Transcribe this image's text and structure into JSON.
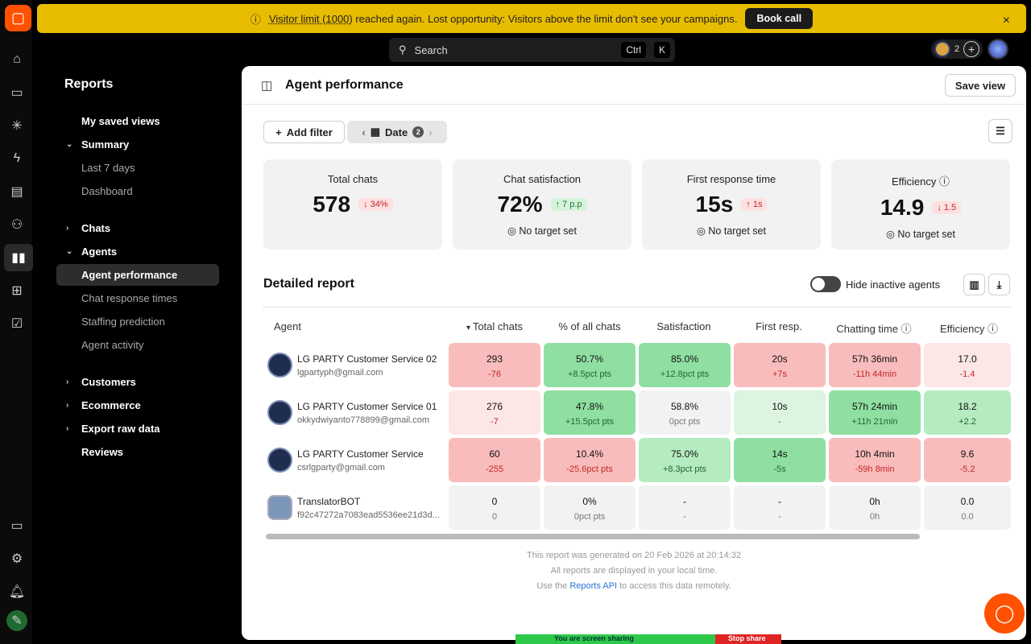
{
  "banner": {
    "text_link": "Visitor limit (1000)",
    "text": " reached again. Lost opportunity: Visitors above the limit don't see your campaigns.",
    "button": "Book call",
    "close": "×"
  },
  "search": {
    "placeholder": "Search",
    "key1": "Ctrl",
    "key2": "K"
  },
  "topbar": {
    "agents_count": "2"
  },
  "sidebar": {
    "title": "Reports",
    "items": [
      {
        "label": "My saved views"
      },
      {
        "label": "Summary"
      },
      {
        "label": "Last 7 days"
      },
      {
        "label": "Dashboard"
      },
      {
        "label": "Chats"
      },
      {
        "label": "Agents"
      },
      {
        "label": "Agent performance"
      },
      {
        "label": "Chat response times"
      },
      {
        "label": "Staffing prediction"
      },
      {
        "label": "Agent activity"
      },
      {
        "label": "Customers"
      },
      {
        "label": "Ecommerce"
      },
      {
        "label": "Export raw data"
      },
      {
        "label": "Reviews"
      }
    ]
  },
  "header": {
    "title": "Agent performance",
    "save_view": "Save view"
  },
  "filters": {
    "add_filter": "Add filter",
    "date": "Date",
    "date_count": "2"
  },
  "kpis": [
    {
      "title": "Total chats",
      "value": "578",
      "delta": "↓ 34%",
      "trend": "bad",
      "target": ""
    },
    {
      "title": "Chat satisfaction",
      "value": "72%",
      "delta": "↑ 7 p.p",
      "trend": "good",
      "target": "No target set"
    },
    {
      "title": "First response time",
      "value": "15s",
      "delta": "↑ 1s",
      "trend": "bad",
      "target": "No target set"
    },
    {
      "title": "Efficiency",
      "value": "14.9",
      "delta": "↓ 1.5",
      "trend": "bad",
      "target": "No target set"
    }
  ],
  "report": {
    "title": "Detailed report",
    "toggle_label": "Hide inactive agents",
    "toggle_on": false,
    "columns": [
      "Agent",
      "Total chats",
      "% of all chats",
      "Satisfaction",
      "First resp.",
      "Chatting time",
      "Efficiency"
    ],
    "sorted_column": "Total chats",
    "rows": [
      {
        "name": "LG PARTY Customer Service 02",
        "email": "lgpartyph@gmail.com",
        "bot": false,
        "cells": [
          {
            "v": "293",
            "d": "-76",
            "tone": "red"
          },
          {
            "v": "50.7%",
            "d": "+8.5pct pts",
            "tone": "green"
          },
          {
            "v": "85.0%",
            "d": "+12.8pct pts",
            "tone": "green"
          },
          {
            "v": "20s",
            "d": "+7s",
            "tone": "red"
          },
          {
            "v": "57h 36min",
            "d": "-11h 44min",
            "tone": "red"
          },
          {
            "v": "17.0",
            "d": "-1.4",
            "tone": "lred"
          }
        ]
      },
      {
        "name": "LG PARTY Customer Service 01",
        "email": "okkydwiyanto778899@gmail.com",
        "bot": false,
        "cells": [
          {
            "v": "276",
            "d": "-7",
            "tone": "lred"
          },
          {
            "v": "47.8%",
            "d": "+15.5pct pts",
            "tone": "green"
          },
          {
            "v": "58.8%",
            "d": "0pct pts",
            "tone": "gray"
          },
          {
            "v": "10s",
            "d": "-",
            "tone": "lgreen"
          },
          {
            "v": "57h 24min",
            "d": "+11h 21min",
            "tone": "green"
          },
          {
            "v": "18.2",
            "d": "+2.2",
            "tone": "mgreen"
          }
        ]
      },
      {
        "name": "LG PARTY Customer Service",
        "email": "csrlgparty@gmail.com",
        "bot": false,
        "cells": [
          {
            "v": "60",
            "d": "-255",
            "tone": "red"
          },
          {
            "v": "10.4%",
            "d": "-25.6pct pts",
            "tone": "red"
          },
          {
            "v": "75.0%",
            "d": "+8.3pct pts",
            "tone": "mgreen"
          },
          {
            "v": "14s",
            "d": "-5s",
            "tone": "green"
          },
          {
            "v": "10h 4min",
            "d": "-59h 8min",
            "tone": "red"
          },
          {
            "v": "9.6",
            "d": "-5.2",
            "tone": "red"
          }
        ]
      },
      {
        "name": "TranslatorBOT",
        "email": "f92c47272a7083ead5536ee21d3d...",
        "bot": true,
        "cells": [
          {
            "v": "0",
            "d": "0",
            "tone": "gray"
          },
          {
            "v": "0%",
            "d": "0pct pts",
            "tone": "gray"
          },
          {
            "v": "-",
            "d": "-",
            "tone": "gray"
          },
          {
            "v": "-",
            "d": "-",
            "tone": "gray"
          },
          {
            "v": "0h",
            "d": "0h",
            "tone": "gray"
          },
          {
            "v": "0.0",
            "d": "0.0",
            "tone": "gray"
          }
        ]
      }
    ]
  },
  "footer": {
    "line1": "This report was generated on 20 Feb 2026 at 20:14:32",
    "line2": "All reports are displayed in your local time.",
    "line3_pre": "Use the ",
    "line3_link": "Reports API",
    "line3_post": " to access this data remotely."
  },
  "screen_share": {
    "text": "You are screen sharing",
    "stop": "Stop share"
  },
  "colors": {
    "banner": "#e8bc00",
    "brand": "#ff5100",
    "cell_red": "#f9bcbc",
    "cell_green": "#8fdfa2"
  }
}
